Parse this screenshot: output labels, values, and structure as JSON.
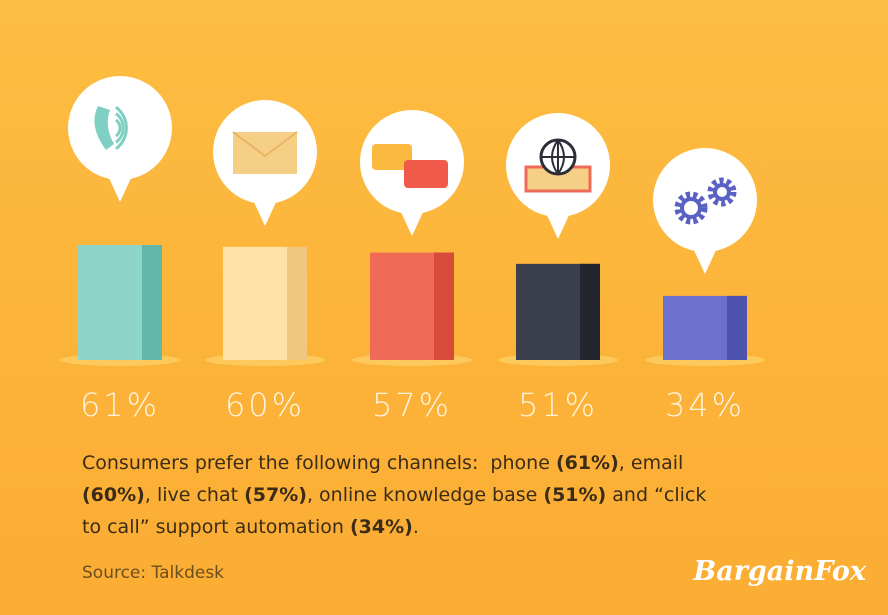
{
  "chart_data": {
    "type": "bar",
    "values": [
      61,
      60,
      57,
      51,
      34
    ],
    "value_labels": [
      "61%",
      "60%",
      "57%",
      "51%",
      "34%"
    ],
    "colors": [
      "#8fd4c9",
      "#fde1a6",
      "#ef6b57",
      "#3b3e4b",
      "#6c71cb"
    ],
    "shade_colors": [
      "#62b7aa",
      "#f1c77f",
      "#d84a3a",
      "#24262e",
      "#4e53ae"
    ],
    "caption": [
      [
        {
          "text": "Consumers prefer the following channels:  phone "
        },
        {
          "text": "(61%)",
          "bold": true
        },
        {
          "text": ", email"
        }
      ],
      [
        {
          "text": "(60%)",
          "bold": true
        },
        {
          "text": ", live chat "
        },
        {
          "text": "(57%)",
          "bold": true
        },
        {
          "text": ", online knowledge base "
        },
        {
          "text": "(51%)",
          "bold": true
        },
        {
          "text": " and “click"
        }
      ],
      [
        {
          "text": "to call” support automation "
        },
        {
          "text": "(34%)",
          "bold": true
        },
        {
          "text": "."
        }
      ]
    ],
    "source": "Source:  Talkdesk",
    "logo": "BargainFox"
  }
}
